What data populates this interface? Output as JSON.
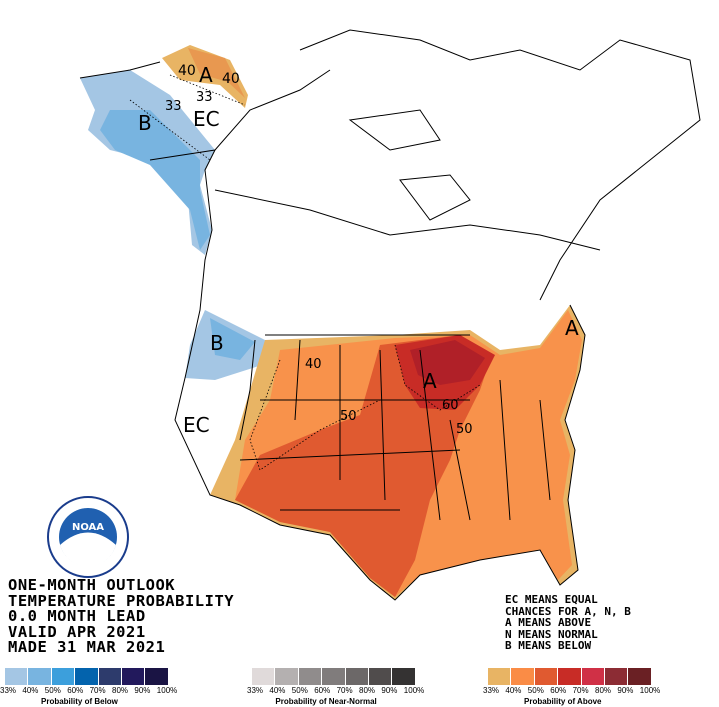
{
  "title_lines": [
    "ONE-MONTH OUTLOOK",
    "TEMPERATURE PROBABILITY",
    "0.0 MONTH LEAD",
    "VALID APR 2021",
    "MADE 31 MAR 2021"
  ],
  "key_lines": [
    "EC MEANS EQUAL",
    "CHANCES FOR A, N, B",
    "A MEANS ABOVE",
    "N MEANS NORMAL",
    "B MEANS BELOW"
  ],
  "map_labels": {
    "ak_a40a": "40",
    "ak_a": "A",
    "ak_a40b": "40",
    "ak_33a": "33",
    "ak_33b": "33",
    "ak_b": "B",
    "ak_ec": "EC",
    "nw_b": "B",
    "w_ec": "EC",
    "c40": "40",
    "c50": "50",
    "gl_a": "A",
    "gl60": "60",
    "e50": "50",
    "ne_a": "A"
  },
  "logo_text": "NOAA",
  "legend": {
    "ticks": [
      "33%",
      "40%",
      "50%",
      "60%",
      "70%",
      "80%",
      "90%",
      "100%"
    ],
    "below": {
      "caption": "Probability of Below",
      "colors": [
        "#a4c6e4",
        "#78b4e0",
        "#3c9fdc",
        "#0363ad",
        "#2d3b6c",
        "#22195c",
        "#1a1444"
      ]
    },
    "normal": {
      "caption": "Probability of Near-Normal",
      "colors": [
        "#e0dada",
        "#b4b0b0",
        "#908c8c",
        "#807c7c",
        "#6c6868",
        "#504c4c",
        "#343232"
      ]
    },
    "above": {
      "caption": "Probability of Above",
      "colors": [
        "#e8b464",
        "#fa8c46",
        "#e05a30",
        "#c82c26",
        "#d03046",
        "#8c2c34",
        "#6a2024"
      ]
    }
  }
}
